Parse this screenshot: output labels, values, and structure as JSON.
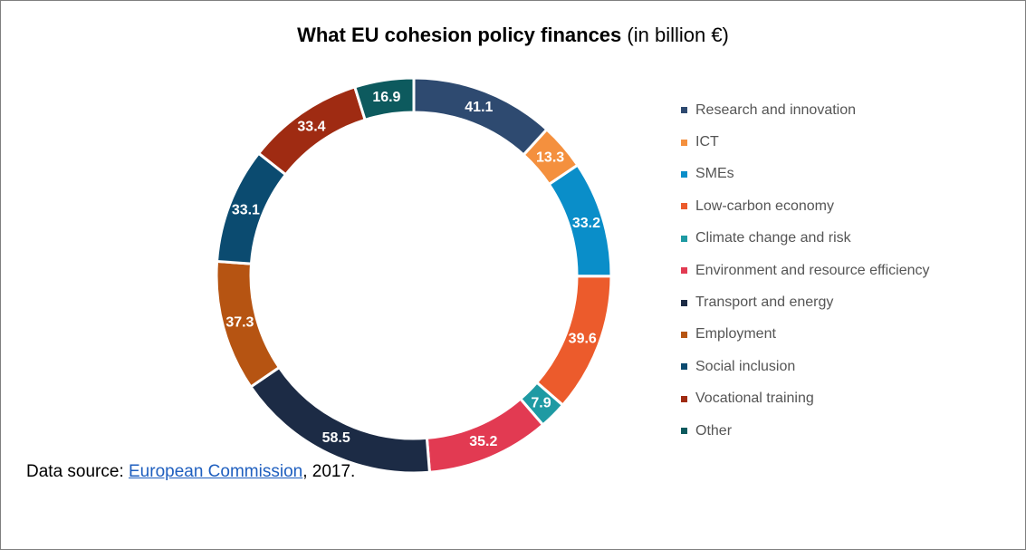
{
  "title": {
    "bold": "What EU cohesion policy finances",
    "suffix": " (in billion €)"
  },
  "chart_data": {
    "type": "pie",
    "variant": "donut",
    "unit": "billion €",
    "categories": [
      "Research and innovation",
      "ICT",
      "SMEs",
      "Low-carbon economy",
      "Climate change and risk",
      "Environment and resource efficiency",
      "Transport and energy",
      "Employment",
      "Social inclusion",
      "Vocational training",
      "Other"
    ],
    "values": [
      41.1,
      13.3,
      33.2,
      39.6,
      7.9,
      35.2,
      58.5,
      37.3,
      33.1,
      33.4,
      16.9
    ],
    "labels": [
      "41.1",
      "13.3",
      "33.2",
      "39.6",
      "7.9",
      "35.2",
      "58.5",
      "37.3",
      "33.1",
      "33.4",
      "16.9"
    ],
    "colors": [
      "#2e4a70",
      "#f4903e",
      "#0a8ec9",
      "#ec5b2c",
      "#1e9aa3",
      "#e23a52",
      "#1c2b45",
      "#b65412",
      "#0b4b70",
      "#9f2b12",
      "#0d5a5e"
    ],
    "legend_position": "right"
  },
  "source": {
    "prefix": "Data source: ",
    "link": "European Commission",
    "suffix": ", 2017."
  }
}
